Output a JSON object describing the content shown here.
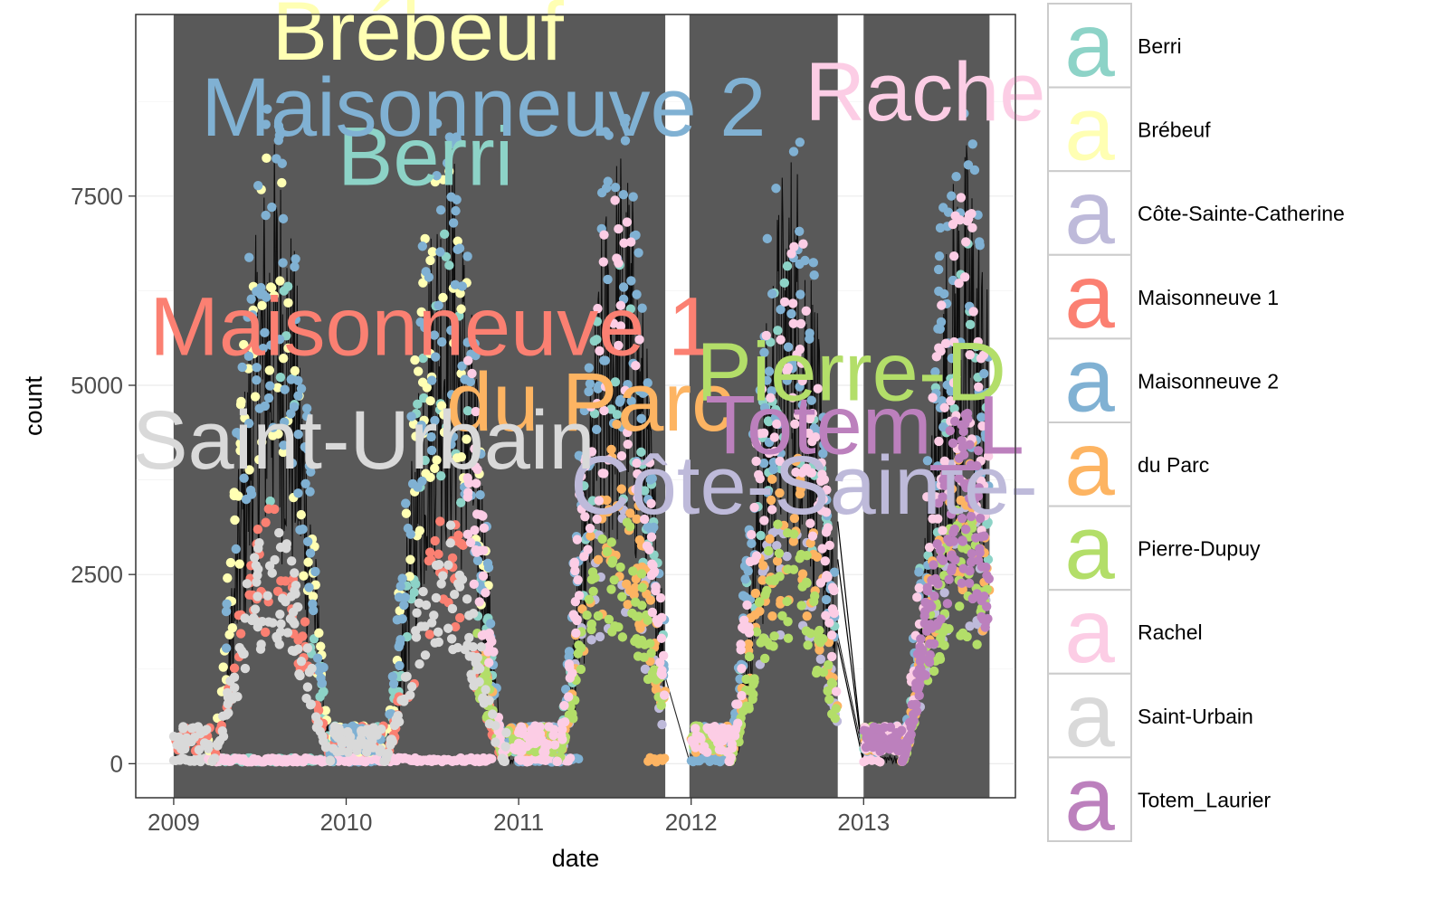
{
  "chart_data": {
    "type": "scatter",
    "title": "",
    "xlabel": "date",
    "ylabel": "count",
    "xlim": [
      2008.78,
      2013.88
    ],
    "ylim": [
      -450,
      9900
    ],
    "x_ticks": [
      {
        "value": 2009,
        "label": "2009"
      },
      {
        "value": 2010,
        "label": "2010"
      },
      {
        "value": 2011,
        "label": "2011"
      },
      {
        "value": 2012,
        "label": "2012"
      },
      {
        "value": 2013,
        "label": "2013"
      }
    ],
    "y_ticks": [
      {
        "value": 0,
        "label": "0"
      },
      {
        "value": 2500,
        "label": "2500"
      },
      {
        "value": 5000,
        "label": "5000"
      },
      {
        "value": 7500,
        "label": "7500"
      }
    ],
    "grid": true,
    "legend_position": "right",
    "legend_key_glyph": "a",
    "shaded_periods": [
      [
        2009.0,
        2011.85
      ],
      [
        2011.99,
        2012.85
      ],
      [
        2013.0,
        2013.73
      ]
    ],
    "series": [
      {
        "name": "Berri",
        "color": "#8DD3C7"
      },
      {
        "name": "Brébeuf",
        "color": "#FFFFB3"
      },
      {
        "name": "Côte-Sainte-Catherine",
        "color": "#BEBADA"
      },
      {
        "name": "Maisonneuve 1",
        "color": "#FB8072"
      },
      {
        "name": "Maisonneuve 2",
        "color": "#80B1D3"
      },
      {
        "name": "du Parc",
        "color": "#FDB462"
      },
      {
        "name": "Pierre-Dupuy",
        "color": "#B3DE69"
      },
      {
        "name": "Rachel",
        "color": "#FCCDE5"
      },
      {
        "name": "Saint-Urbain",
        "color": "#D9D9D9"
      },
      {
        "name": "Totem_Laurier",
        "color": "#BC80BD"
      }
    ],
    "big_labels": [
      {
        "text": "Berri",
        "series": 0,
        "x": 2009.95,
        "y": 7650
      },
      {
        "text": "Brébeuf",
        "series": 1,
        "x": 2009.57,
        "y": 9300
      },
      {
        "text": "Côte-Sainte-",
        "series": 2,
        "x": 2011.3,
        "y": 3300
      },
      {
        "text": "Maisonneuve 1",
        "series": 3,
        "x": 2008.86,
        "y": 5400
      },
      {
        "text": "Maisonneuve 2",
        "series": 4,
        "x": 2009.16,
        "y": 8300
      },
      {
        "text": "du Parc",
        "series": 5,
        "x": 2010.58,
        "y": 4400
      },
      {
        "text": "Pierre-D",
        "series": 6,
        "x": 2012.03,
        "y": 4800
      },
      {
        "text": "Rache",
        "series": 7,
        "x": 2012.66,
        "y": 8500
      },
      {
        "text": "Saint-Urbain",
        "series": 8,
        "x": 2008.76,
        "y": 3900
      },
      {
        "text": "Totem_L",
        "series": 9,
        "x": 2012.08,
        "y": 4100
      }
    ]
  }
}
